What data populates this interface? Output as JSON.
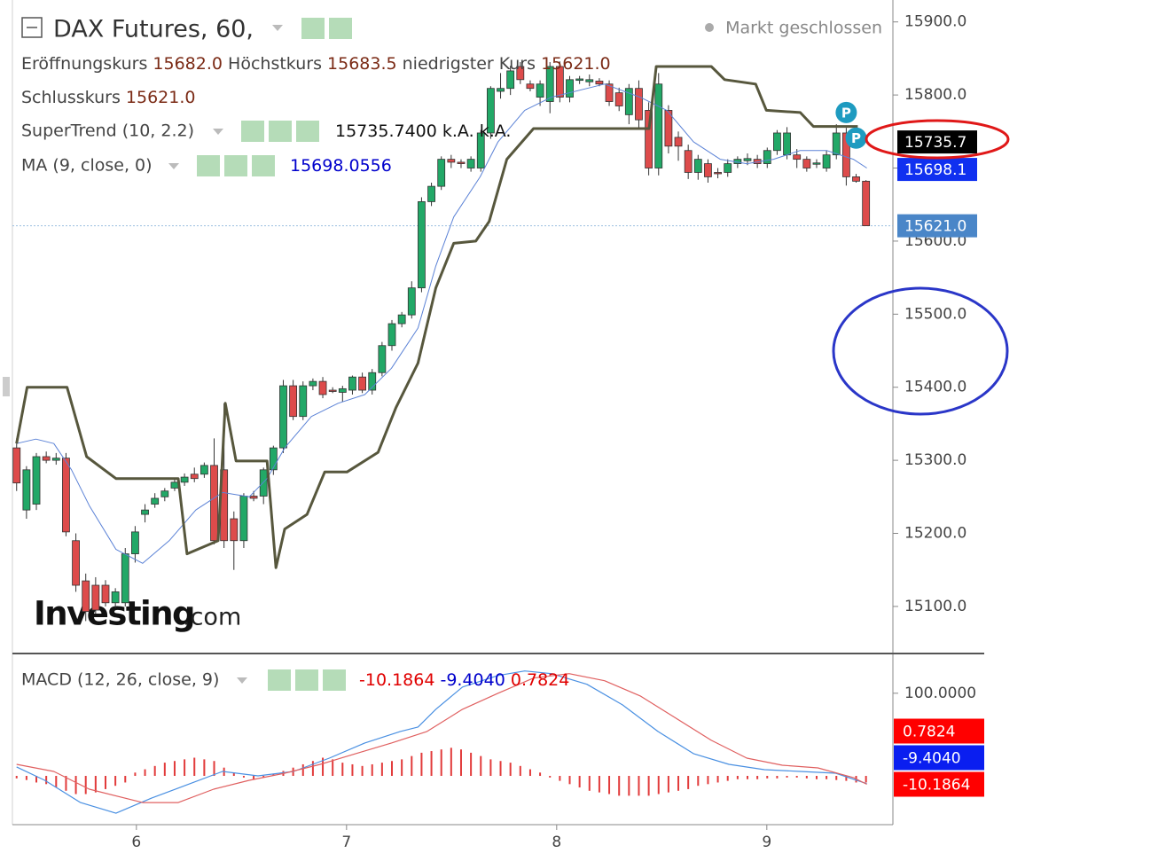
{
  "chart_data": [
    {
      "type": "candlestick",
      "title": "DAX Futures, 60,",
      "status": "Markt geschlossen",
      "ohlc_legend": [
        [
          "Eröffnungskurs",
          "15682.0"
        ],
        [
          "Höchstkurs",
          "15683.5"
        ],
        [
          "niedrigster Kurs",
          "15621.0"
        ],
        [
          "Schlusskurs",
          "15621.0"
        ]
      ],
      "up_color": "#22a867",
      "down_color": "#dd4b4b",
      "x": [
        5.43,
        5.477,
        5.524,
        5.571,
        5.618,
        5.665,
        5.712,
        5.759,
        5.806,
        5.853,
        5.9,
        5.947,
        5.994,
        6.041,
        6.088,
        6.135,
        6.182,
        6.229,
        6.276,
        6.323,
        6.37,
        6.417,
        6.464,
        6.511,
        6.558,
        6.605,
        6.652,
        6.699,
        6.746,
        6.793,
        6.84,
        6.887,
        6.934,
        6.981,
        7.028,
        7.075,
        7.122,
        7.169,
        7.216,
        7.263,
        7.31,
        7.357,
        7.404,
        7.451,
        7.498,
        7.545,
        7.592,
        7.639,
        7.686,
        7.733,
        7.78,
        7.827,
        7.874,
        7.921,
        7.968,
        8.015,
        8.062,
        8.109,
        8.156,
        8.203,
        8.25,
        8.297,
        8.344,
        8.391,
        8.438,
        8.485,
        8.532,
        8.579,
        8.626,
        8.673,
        8.72,
        8.767,
        8.814,
        8.861,
        8.908,
        8.955,
        9.002,
        9.049,
        9.096,
        9.143,
        9.19,
        9.237,
        9.284,
        9.331,
        9.378,
        9.425,
        9.472
      ],
      "ohlc": [
        [
          15317,
          15330,
          15258,
          15269
        ],
        [
          15232,
          15292,
          15220,
          15287
        ],
        [
          15240,
          15310,
          15232,
          15305
        ],
        [
          15305,
          15312,
          15296,
          15300
        ],
        [
          15300,
          15310,
          15294,
          15303
        ],
        [
          15303,
          15310,
          15196,
          15202
        ],
        [
          15190,
          15200,
          15120,
          15129
        ],
        [
          15135,
          15145,
          15080,
          15093
        ],
        [
          15129,
          15140,
          15090,
          15095
        ],
        [
          15129,
          15136,
          15100,
          15105
        ],
        [
          15105,
          15125,
          15098,
          15120
        ],
        [
          15105,
          15180,
          15100,
          15172
        ],
        [
          15172,
          15210,
          15160,
          15202
        ],
        [
          15226,
          15240,
          15215,
          15232
        ],
        [
          15240,
          15255,
          15235,
          15248
        ],
        [
          15250,
          15262,
          15244,
          15258
        ],
        [
          15262,
          15275,
          15258,
          15270
        ],
        [
          15270,
          15282,
          15265,
          15277
        ],
        [
          15281,
          15290,
          15270,
          15275
        ],
        [
          15281,
          15297,
          15276,
          15293
        ],
        [
          15293,
          15330,
          15185,
          15190
        ],
        [
          15287,
          15378,
          15180,
          15190
        ],
        [
          15220,
          15230,
          15150,
          15190
        ],
        [
          15190,
          15255,
          15180,
          15251
        ],
        [
          15251,
          15258,
          15244,
          15248
        ],
        [
          15251,
          15290,
          15240,
          15287
        ],
        [
          15287,
          15320,
          15280,
          15317
        ],
        [
          15317,
          15410,
          15310,
          15402
        ],
        [
          15402,
          15410,
          15355,
          15360
        ],
        [
          15360,
          15408,
          15355,
          15402
        ],
        [
          15402,
          15412,
          15396,
          15408
        ],
        [
          15408,
          15414,
          15385,
          15390
        ],
        [
          15396,
          15400,
          15392,
          15395
        ],
        [
          15393,
          15402,
          15380,
          15398
        ],
        [
          15396,
          15416,
          15390,
          15414
        ],
        [
          15414,
          15420,
          15392,
          15396
        ],
        [
          15396,
          15425,
          15390,
          15420
        ],
        [
          15420,
          15462,
          15415,
          15457
        ],
        [
          15457,
          15492,
          15450,
          15487
        ],
        [
          15487,
          15503,
          15482,
          15499
        ],
        [
          15499,
          15545,
          15494,
          15536
        ],
        [
          15536,
          15660,
          15530,
          15654
        ],
        [
          15654,
          15680,
          15648,
          15675
        ],
        [
          15675,
          15716,
          15670,
          15712
        ],
        [
          15712,
          15718,
          15700,
          15708
        ],
        [
          15708,
          15712,
          15700,
          15706
        ],
        [
          15700,
          15716,
          15695,
          15712
        ],
        [
          15700,
          15752,
          15695,
          15748
        ],
        [
          15748,
          15812,
          15740,
          15809
        ],
        [
          15805,
          15830,
          15795,
          15809
        ],
        [
          15809,
          15840,
          15800,
          15833
        ],
        [
          15839,
          15845,
          15815,
          15821
        ],
        [
          15815,
          15820,
          15805,
          15809
        ],
        [
          15797,
          15820,
          15785,
          15815
        ],
        [
          15791,
          15845,
          15775,
          15839
        ],
        [
          15839,
          15846,
          15790,
          15797
        ],
        [
          15797,
          15826,
          15790,
          15821
        ],
        [
          15820,
          15826,
          15815,
          15822
        ],
        [
          15818,
          15828,
          15812,
          15821
        ],
        [
          15819,
          15823,
          15812,
          15815
        ],
        [
          15815,
          15820,
          15785,
          15791
        ],
        [
          15803,
          15810,
          15778,
          15785
        ],
        [
          15773,
          15815,
          15760,
          15809
        ],
        [
          15809,
          15820,
          15755,
          15766
        ],
        [
          15779,
          15790,
          15690,
          15700
        ],
        [
          15700,
          15830,
          15690,
          15815
        ],
        [
          15779,
          15786,
          15720,
          15730
        ],
        [
          15742,
          15750,
          15710,
          15730
        ],
        [
          15724,
          15732,
          15685,
          15694
        ],
        [
          15694,
          15718,
          15684,
          15712
        ],
        [
          15706,
          15712,
          15680,
          15688
        ],
        [
          15694,
          15700,
          15686,
          15693
        ],
        [
          15694,
          15712,
          15688,
          15706
        ],
        [
          15706,
          15716,
          15700,
          15712
        ],
        [
          15710,
          15720,
          15704,
          15713
        ],
        [
          15712,
          15718,
          15700,
          15706
        ],
        [
          15706,
          15728,
          15700,
          15724
        ],
        [
          15724,
          15752,
          15718,
          15748
        ],
        [
          15718,
          15756,
          15712,
          15748
        ],
        [
          15718,
          15726,
          15700,
          15712
        ],
        [
          15712,
          15716,
          15695,
          15700
        ],
        [
          15706,
          15712,
          15700,
          15707
        ],
        [
          15700,
          15724,
          15695,
          15718
        ],
        [
          15718,
          15760,
          15712,
          15748
        ],
        [
          15748,
          15755,
          15676,
          15688
        ],
        [
          15688,
          15692,
          15680,
          15682
        ],
        [
          15682,
          15683.5,
          15621,
          15621
        ]
      ],
      "lines": [
        {
          "name": "SuperTrend (10, 2.2)",
          "readout": [
            "15735.7400",
            "k.A.",
            "k.A."
          ],
          "readout_color": "#111111",
          "color": "#57573d",
          "x": [
            5.43,
            5.48,
            5.67,
            5.763,
            5.903,
            6.199,
            6.241,
            6.389,
            6.423,
            6.474,
            6.622,
            6.664,
            6.706,
            6.812,
            6.896,
            7.002,
            7.15,
            7.235,
            7.34,
            7.425,
            7.51,
            7.615,
            7.679,
            7.763,
            7.89,
            8.44,
            8.474,
            8.736,
            8.799,
            8.947,
            8.998,
            9.159,
            9.222,
            9.433
          ],
          "values": [
            15323,
            15400,
            15400,
            15305,
            15275,
            15275,
            15172,
            15190,
            15378,
            15299,
            15299,
            15153,
            15206,
            15226,
            15284,
            15284,
            15311,
            15372,
            15433,
            15536,
            15597,
            15600,
            15627,
            15712,
            15754,
            15754,
            15839,
            15839,
            15821,
            15815,
            15779,
            15776,
            15757,
            15757
          ]
        },
        {
          "name": "MA (9, close, 0)",
          "readout": [
            "15698.0556"
          ],
          "readout_color": "#0000cc",
          "color": "#5b82d6",
          "x": [
            5.43,
            5.522,
            5.607,
            5.691,
            5.776,
            5.903,
            6.03,
            6.156,
            6.283,
            6.41,
            6.537,
            6.622,
            6.706,
            6.833,
            6.96,
            7.087,
            7.214,
            7.34,
            7.425,
            7.51,
            7.636,
            7.721,
            7.848,
            7.975,
            8.228,
            8.397,
            8.524,
            8.651,
            8.778,
            8.905,
            9.032,
            9.159,
            9.285,
            9.412,
            9.476
          ],
          "values": [
            15323,
            15329,
            15323,
            15287,
            15238,
            15178,
            15159,
            15190,
            15232,
            15256,
            15250,
            15275,
            15317,
            15360,
            15378,
            15390,
            15426,
            15481,
            15566,
            15633,
            15688,
            15736,
            15779,
            15797,
            15815,
            15797,
            15779,
            15736,
            15712,
            15706,
            15712,
            15724,
            15724,
            15712,
            15700
          ]
        }
      ],
      "markers": [
        {
          "x": 9.378,
          "y": 15776,
          "label": "P"
        },
        {
          "x": 9.425,
          "y": 15741,
          "label": "P"
        }
      ],
      "price_labels": [
        {
          "value": 15735.7,
          "label": "15735.7",
          "color": "#000000"
        },
        {
          "value": 15698.1,
          "label": "15698.1",
          "color": "#1030f0"
        },
        {
          "value": 15621,
          "label": "15621.0",
          "color": "#4a86c8",
          "line": true
        }
      ],
      "watermark": [
        "Investing",
        ".com"
      ],
      "xlim": [
        5.41,
        9.6
      ],
      "ylim": [
        15038,
        15930
      ],
      "yticks": [
        {
          "value": 15100,
          "label": "15100.0"
        },
        {
          "value": 15200,
          "label": "15200.0"
        },
        {
          "value": 15300,
          "label": "15300.0"
        },
        {
          "value": 15400,
          "label": "15400.0"
        },
        {
          "value": 15500,
          "label": "15500.0"
        },
        {
          "value": 15600,
          "label": "15600.0"
        },
        {
          "value": 15700,
          "label": "15700.0"
        },
        {
          "value": 15800,
          "label": "15800.0"
        },
        {
          "value": 15900,
          "label": "15900.0"
        }
      ]
    },
    {
      "type": "macd",
      "legend": "MACD (12, 26, close, 9)",
      "readout": [
        {
          "value": -10.1864,
          "label": "-10.1864",
          "color": "#e00000"
        },
        {
          "value": -9.404,
          "label": "-9.4040",
          "color": "#0000cc"
        },
        {
          "value": 0.7824,
          "label": "0.7824",
          "color": "#e00000"
        }
      ],
      "lines": [
        {
          "color": "#4a90e2",
          "x": [
            5.43,
            5.564,
            5.734,
            5.903,
            6.072,
            6.241,
            6.41,
            6.579,
            6.748,
            6.918,
            7.087,
            7.256,
            7.34,
            7.425,
            7.552,
            7.721,
            7.848,
            7.975,
            8.144,
            8.313,
            8.482,
            8.651,
            8.82,
            8.989,
            9.159,
            9.328,
            9.476
          ],
          "values": [
            10.8,
            -5.4,
            -32.3,
            -45.2,
            -26.9,
            -10.8,
            5.4,
            0,
            5.4,
            21.5,
            39.8,
            53.8,
            59.1,
            80.6,
            107.5,
            121.5,
            126.9,
            123.7,
            110.8,
            86,
            53.8,
            26.9,
            14,
            7.5,
            5.4,
            3.2,
            -9.4
          ]
        },
        {
          "color": "#e06060",
          "x": [
            5.43,
            5.607,
            5.776,
            6.03,
            6.199,
            6.368,
            6.537,
            6.706,
            6.875,
            7.044,
            7.214,
            7.383,
            7.552,
            7.721,
            7.89,
            8.059,
            8.228,
            8.397,
            8.567,
            8.736,
            8.905,
            9.074,
            9.243,
            9.412,
            9.476
          ],
          "values": [
            14,
            5.4,
            -16.1,
            -32.3,
            -32.3,
            -16.1,
            -5.4,
            3.2,
            14,
            26.9,
            39.8,
            53.8,
            80.6,
            100,
            118.3,
            123.7,
            115.1,
            96.8,
            69.9,
            43,
            21.5,
            12.9,
            9.7,
            -2,
            -10.2
          ]
        }
      ],
      "histogram": {
        "color": "#e23b3b",
        "values": [
          -3,
          -5,
          -8,
          -10,
          -14,
          -18,
          -22,
          -22,
          -20,
          -16,
          -12,
          -8,
          4,
          8,
          12,
          16,
          18,
          20,
          22,
          20,
          18,
          10,
          4,
          -2,
          -4,
          -2,
          2,
          6,
          10,
          14,
          18,
          22,
          20,
          16,
          14,
          12,
          14,
          16,
          18,
          20,
          24,
          28,
          30,
          32,
          34,
          32,
          28,
          24,
          20,
          18,
          16,
          12,
          8,
          4,
          -2,
          -6,
          -10,
          -14,
          -18,
          -20,
          -22,
          -24,
          -24,
          -24,
          -24,
          -22,
          -20,
          -18,
          -16,
          -12,
          -10,
          -8,
          -6,
          -4,
          -4,
          -4,
          -3,
          -3,
          -2,
          -2,
          -3,
          -4,
          -4,
          -5,
          -6,
          -8,
          -8
        ]
      },
      "xlim": [
        5.41,
        9.6
      ],
      "xticks": [
        6,
        7,
        8,
        9
      ],
      "ylim": [
        -59,
        147
      ],
      "yticks": [
        {
          "value": 100,
          "label": "100.0000"
        }
      ]
    }
  ]
}
